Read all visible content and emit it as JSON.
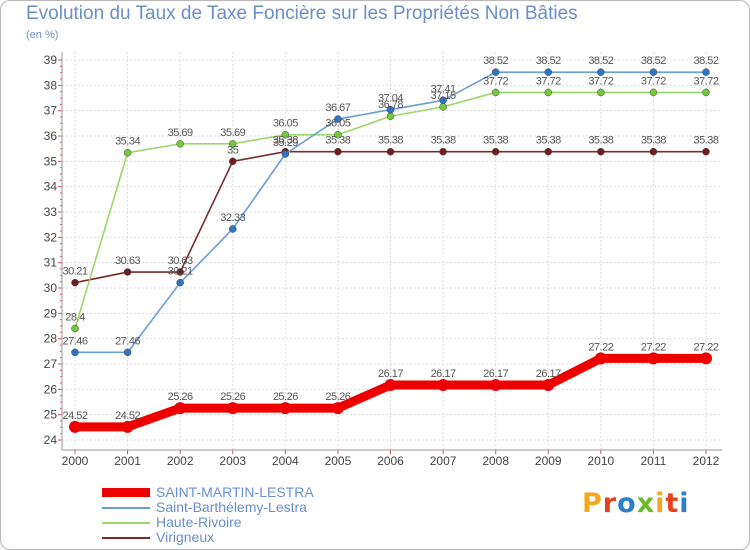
{
  "title": "Evolution du Taux de Taxe Foncière sur les Propriétés Non Bâties",
  "subtitle": "(en %)",
  "logo": {
    "text": "Proxiti",
    "letters": [
      {
        "ch": "P",
        "color": "#f2a81d"
      },
      {
        "ch": "r",
        "color": "#e8401c"
      },
      {
        "ch": "o",
        "color": "#2b7fc9"
      },
      {
        "ch": "x",
        "color": "#6dbb2a"
      },
      {
        "ch": "i",
        "color": "#f2a81d"
      },
      {
        "ch": "t",
        "color": "#e8401c"
      },
      {
        "ch": "i",
        "color": "#2b7fc9"
      }
    ]
  },
  "chart_data": {
    "type": "line",
    "title": "Evolution du Taux de Taxe Foncière sur les Propriétés Non Bâties",
    "ylabel": "(en %)",
    "xlabel": "",
    "x": [
      "2000",
      "2001",
      "2002",
      "2003",
      "2004",
      "2005",
      "2006",
      "2007",
      "2008",
      "2009",
      "2010",
      "2011",
      "2012"
    ],
    "ylim": [
      24,
      39
    ],
    "yticks": [
      "24",
      "25",
      "26",
      "27",
      "28",
      "29",
      "30",
      "31",
      "32",
      "33",
      "34",
      "35",
      "36",
      "37",
      "38",
      "39"
    ],
    "grid": true,
    "legend_position": "bottom-left",
    "series": [
      {
        "name": "SAINT-MARTIN-LESTRA",
        "color": "#ee0000",
        "labelColor": "#555555",
        "values": [
          24.52,
          24.52,
          25.26,
          25.26,
          25.26,
          25.26,
          26.17,
          26.17,
          26.17,
          26.17,
          27.22,
          27.22,
          27.22
        ],
        "labels": [
          "24.52",
          "24.52",
          "25.26",
          "25.26",
          "25.26",
          "25.26",
          "26.17",
          "26.17",
          "26.17",
          "26.17",
          "27.22",
          "27.22",
          "27.22"
        ]
      },
      {
        "name": "Saint-Barthélemy-Lestra",
        "color": "#6a9fd4",
        "markerColor": "#2f74c4",
        "labelColor": "#555555",
        "values": [
          27.46,
          27.46,
          30.21,
          32.33,
          35.29,
          36.67,
          37.04,
          37.41,
          38.52,
          38.52,
          38.52,
          38.52,
          38.52
        ],
        "labels": [
          "27.46",
          "27.46",
          "30.21",
          "32.33",
          "35.29",
          "36.67",
          "37.04",
          "37.41",
          "38.52",
          "38.52",
          "38.52",
          "38.52",
          "38.52"
        ]
      },
      {
        "name": "Haute-Rivoire",
        "color": "#9ad86a",
        "markerColor": "#72c93a",
        "labelColor": "#555555",
        "values": [
          28.4,
          35.34,
          35.69,
          35.69,
          36.05,
          36.05,
          36.78,
          37.15,
          37.72,
          37.72,
          37.72,
          37.72,
          37.72
        ],
        "labels": [
          "28.4",
          "35.34",
          "35.69",
          "35.69",
          "36.05",
          "36.05",
          "36.78",
          "37.15",
          "37.72",
          "37.72",
          "37.72",
          "37.72",
          "37.72"
        ]
      },
      {
        "name": "Virigneux",
        "color": "#7a2a2a",
        "markerColor": "#6e1f1f",
        "labelColor": "#555555",
        "values": [
          30.21,
          30.63,
          30.63,
          35,
          35.38,
          35.38,
          35.38,
          35.38,
          35.38,
          35.38,
          35.38,
          35.38,
          35.38
        ],
        "labels": [
          "30.21",
          "30.63",
          "30.63",
          "35",
          "35.38",
          "35.38",
          "35.38",
          "35.38",
          "35.38",
          "35.38",
          "35.38",
          "35.38",
          "35.38"
        ]
      }
    ]
  }
}
